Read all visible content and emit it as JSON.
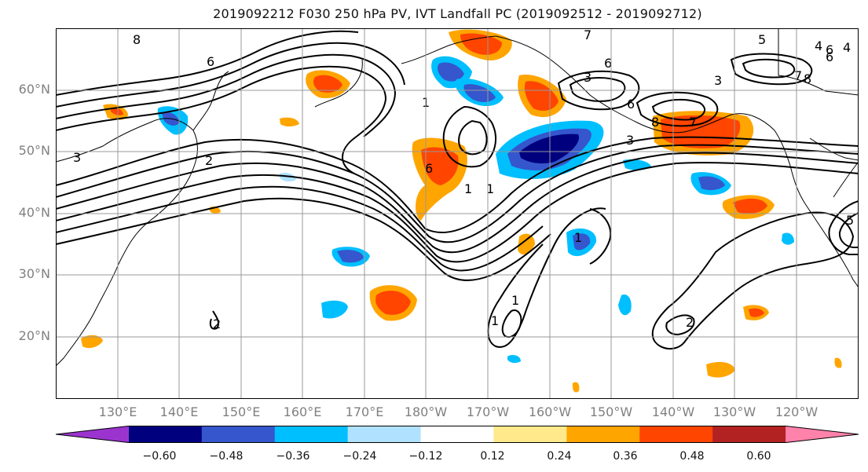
{
  "title": "2019092212 F030 250 hPa PV, IVT Landfall PC (2019092512 - 2019092712)",
  "lat_labels": [
    "60°N",
    "50°N",
    "40°N",
    "30°N",
    "20°N"
  ],
  "lon_labels": [
    "130°E",
    "140°E",
    "150°E",
    "160°E",
    "170°E",
    "180°W",
    "170°W",
    "160°W",
    "150°W",
    "140°W",
    "130°W",
    "120°W"
  ],
  "colorbar": {
    "colors": [
      "#9b34cf",
      "#00007f",
      "#3556cc",
      "#00bfff",
      "#b0e2ff",
      "#ffffff",
      "#ffe98a",
      "#ffa500",
      "#ff4500",
      "#b22222",
      "#ff82ab"
    ],
    "ticks": [
      "−0.60",
      "−0.48",
      "−0.36",
      "−0.24",
      "−0.12",
      "0.12",
      "0.24",
      "0.36",
      "0.48",
      "0.60"
    ]
  },
  "contour_labels": [
    "8",
    "6",
    "7",
    "5",
    "4",
    "6",
    "3",
    "6",
    "3",
    "6",
    "8",
    "7",
    "3",
    "3",
    "2",
    "6",
    "1",
    "1",
    "1",
    "2",
    "1",
    "1",
    "1",
    "2",
    "4",
    "6",
    "7",
    "8",
    "5"
  ]
}
